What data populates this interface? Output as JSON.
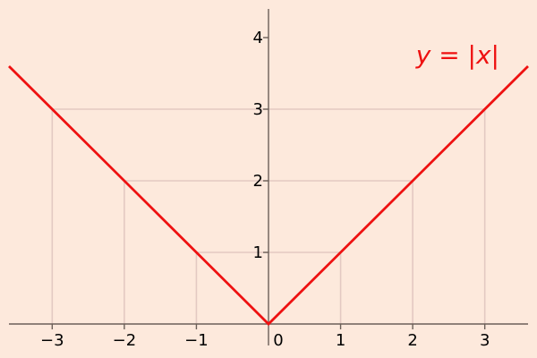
{
  "chart_data": {
    "type": "line",
    "title": "",
    "xlabel": "",
    "ylabel": "",
    "xlim": [
      -3.6,
      3.6
    ],
    "ylim": [
      -0.3,
      4.4
    ],
    "x_ticks": [
      -3,
      -2,
      -1,
      0,
      1,
      2,
      3
    ],
    "x_tick_labels": [
      "−3",
      "−2",
      "−1",
      "0",
      "1",
      "2",
      "3"
    ],
    "y_ticks": [
      1,
      2,
      3,
      4
    ],
    "y_tick_labels": [
      "1",
      "2",
      "3",
      "4"
    ],
    "series": [
      {
        "formula": "y = |x|",
        "color": "#ee1111",
        "x": [
          -3.6,
          0,
          3.6
        ],
        "y": [
          3.6,
          0,
          3.6
        ]
      }
    ],
    "guide_points": [
      {
        "x": -3,
        "y": 3
      },
      {
        "x": -2,
        "y": 2
      },
      {
        "x": -1,
        "y": 1
      },
      {
        "x": 1,
        "y": 1
      },
      {
        "x": 2,
        "y": 2
      },
      {
        "x": 3,
        "y": 3
      }
    ],
    "grid": false,
    "colors": {
      "background": "#fde9dc",
      "axis": "#6b5f58",
      "guide": "#e3c9c2",
      "curve": "#ee1111"
    }
  }
}
